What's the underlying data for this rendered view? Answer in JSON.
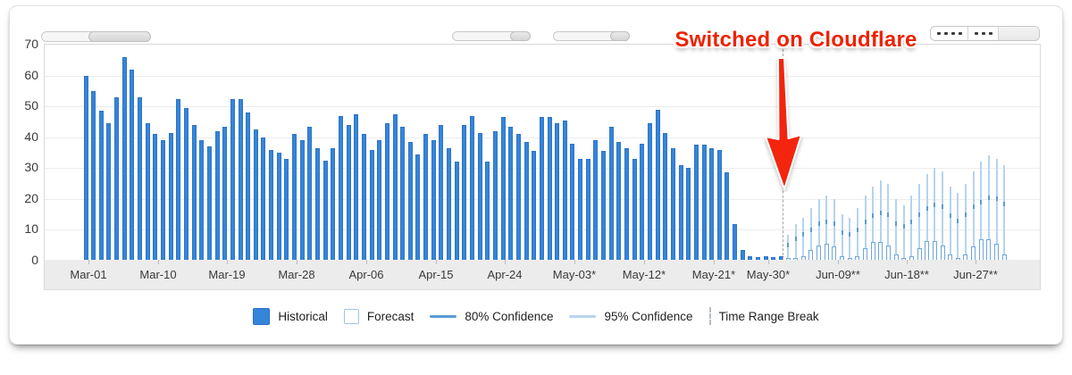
{
  "annotation": {
    "text": "Switched on Cloudflare",
    "color": "#ee2200",
    "arrow_icon": "down-arrow-icon"
  },
  "toolbar": {
    "left_scrollbar": "horizontal-scrollbar",
    "mini_sliders": 2,
    "segmented_dots": [
      4,
      3
    ]
  },
  "colors": {
    "historical": "#3585d9",
    "historical_border": "#2d74c6",
    "forecast_border": "#6fa5da",
    "conf80": "#5f9cd6",
    "conf95": "#b7d3ee",
    "annotation_red": "#ee2200",
    "grid": "#ececec",
    "axis_band": "#ececec"
  },
  "legend": [
    {
      "label": "Historical",
      "swatch": "filled"
    },
    {
      "label": "Forecast",
      "swatch": "outline"
    },
    {
      "label": "80% Confidence",
      "swatch": "line-dark"
    },
    {
      "label": "95% Confidence",
      "swatch": "line-light"
    },
    {
      "label": "Time Range Break",
      "swatch": "dashed-vertical"
    }
  ],
  "chart_data": {
    "type": "bar",
    "title": "",
    "xlabel": "",
    "ylabel": "",
    "ylim": [
      0,
      70
    ],
    "grid": true,
    "legend_position": "bottom",
    "y_ticks": [
      70,
      60,
      50,
      40,
      30,
      20,
      10,
      0
    ],
    "x_tick_labels": [
      "Mar-01",
      "Mar-10",
      "Mar-19",
      "Mar-28",
      "Apr-06",
      "Apr-15",
      "Apr-24",
      "May-03*",
      "May-12*",
      "May-21*",
      "May-30*",
      "Jun-09**",
      "Jun-18**",
      "Jun-27**"
    ],
    "time_range_break_after": "May-30*",
    "annotation": "Switched on Cloudflare",
    "series": [
      {
        "name": "Historical",
        "start_label": "Mar-01",
        "values": [
          60,
          55,
          48.5,
          44.5,
          53,
          66,
          62,
          53,
          44.5,
          41,
          39,
          41.5,
          52.5,
          49.5,
          44,
          39,
          37,
          42,
          43.5,
          52.5,
          52.5,
          48,
          42.5,
          40,
          36,
          35,
          33,
          41,
          39,
          43.5,
          36.5,
          32.5,
          36.5,
          47,
          44,
          47.5,
          41,
          36,
          39,
          44.5,
          47.5,
          43.5,
          38.5,
          34.5,
          41,
          39,
          44,
          36.5,
          32,
          44,
          47,
          41.5,
          32,
          42,
          46.5,
          43.5,
          41,
          38.5,
          35.5,
          46.5,
          46.5,
          44.5,
          45.5,
          38,
          33,
          33,
          39,
          35.5,
          43.5,
          38.5,
          36.5,
          33,
          38,
          44.5,
          49,
          41.5,
          36.5,
          31,
          30,
          37.5,
          37.5,
          36.5,
          36,
          28.5,
          12,
          3.5,
          1.5,
          1.2,
          1.5,
          1.2,
          1.5
        ]
      },
      {
        "name": "Forecast",
        "start_label": "after time range break",
        "values": [
          1,
          0.8,
          1.5,
          3.5,
          5,
          5.5,
          4.5,
          1.5,
          0.8,
          1.5,
          4,
          6,
          6,
          5,
          2,
          0.8,
          1.5,
          4,
          6.5,
          6.5,
          5,
          2,
          1,
          2,
          4.5,
          7,
          7,
          5.5,
          2
        ]
      },
      {
        "name": "80% Confidence (upper)",
        "values": [
          5,
          7,
          8.5,
          10,
          12,
          12.5,
          12,
          9,
          8.5,
          10,
          12.5,
          14.5,
          15.5,
          15,
          12,
          11,
          12.5,
          15,
          17,
          18,
          17.5,
          14.5,
          13,
          15,
          17.5,
          19,
          20.5,
          20,
          18.5
        ]
      },
      {
        "name": "95% Confidence (upper)",
        "values": [
          8.5,
          12,
          14,
          17,
          20,
          21,
          20,
          15,
          14,
          17,
          21,
          24,
          26,
          25,
          20,
          18,
          21,
          25,
          28,
          30,
          29,
          24,
          22,
          25,
          29,
          32,
          34,
          33,
          31
        ]
      }
    ]
  }
}
